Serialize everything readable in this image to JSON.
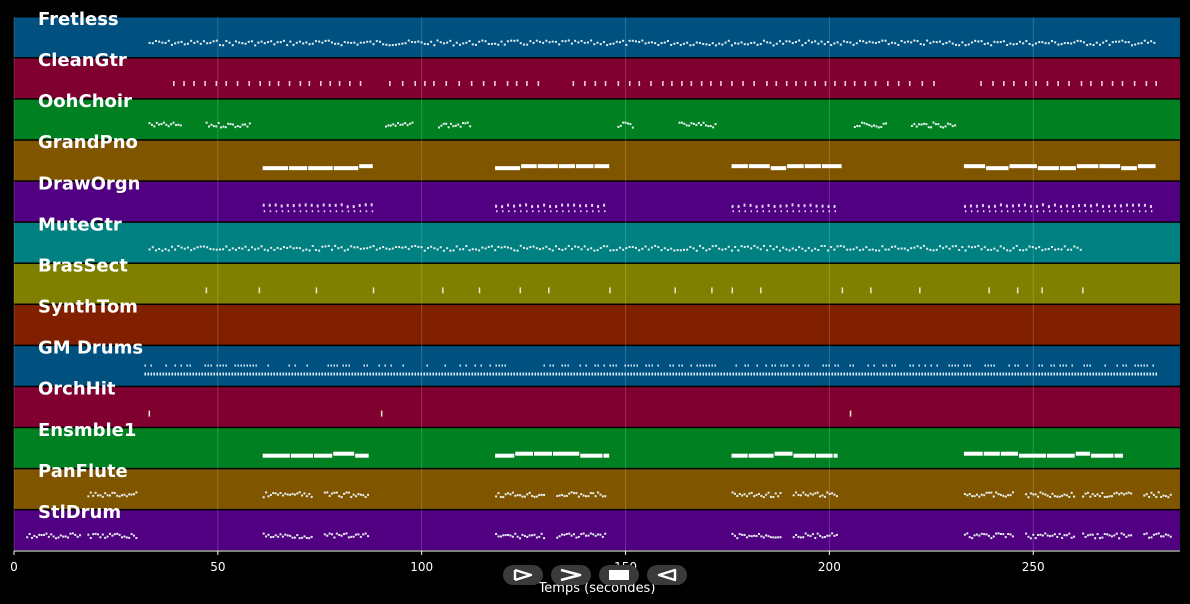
{
  "tracks": [
    {
      "name": "Fretless",
      "color": "#005080"
    },
    {
      "name": "CleanGtr",
      "color": "#800030"
    },
    {
      "name": "OohChoir",
      "color": "#008020"
    },
    {
      "name": "GrandPno",
      "color": "#805500"
    },
    {
      "name": "DrawOrgn",
      "color": "#500080"
    },
    {
      "name": "MuteGtr",
      "color": "#008080"
    },
    {
      "name": "BrasSect",
      "color": "#808000"
    },
    {
      "name": "SynthTom",
      "color": "#802000"
    },
    {
      "name": "GM Drums",
      "color": "#005080"
    },
    {
      "name": "OrchHit",
      "color": "#800030"
    },
    {
      "name": "Ensmble1",
      "color": "#008020"
    },
    {
      "name": "PanFlute",
      "color": "#805500"
    },
    {
      "name": "StlDrum",
      "color": "#500080"
    }
  ],
  "x_axis": {
    "label": "Temps (secondes)",
    "range": [
      0,
      286
    ],
    "ticks": [
      0,
      50,
      100,
      150,
      200,
      250
    ]
  },
  "controls": [
    {
      "name": "play-button",
      "icon": "play-outline-icon"
    },
    {
      "name": "forward-button",
      "icon": "chevron-right-icon"
    },
    {
      "name": "stop-button",
      "icon": "stop-icon"
    },
    {
      "name": "rewind-button",
      "icon": "play-reverse-outline-icon"
    }
  ],
  "note_groups": [
    {
      "track": 0,
      "style": "dense",
      "ranges": [
        [
          33,
          280
        ]
      ]
    },
    {
      "track": 1,
      "style": "sparse",
      "ranges": [
        [
          39,
          86
        ],
        [
          92,
          130
        ],
        [
          137,
          228
        ],
        [
          237,
          280
        ]
      ]
    },
    {
      "track": 2,
      "style": "clustered",
      "ranges": [
        [
          33,
          41
        ],
        [
          47,
          58
        ],
        [
          91,
          98
        ],
        [
          104,
          112
        ],
        [
          148,
          152
        ],
        [
          163,
          172
        ],
        [
          206,
          214
        ],
        [
          220,
          231
        ]
      ]
    },
    {
      "track": 3,
      "style": "bars",
      "ranges": [
        [
          61,
          88
        ],
        [
          118,
          146
        ],
        [
          176,
          203
        ],
        [
          233,
          280
        ]
      ]
    },
    {
      "track": 4,
      "style": "chords",
      "ranges": [
        [
          61,
          88
        ],
        [
          118,
          145
        ],
        [
          176,
          202
        ],
        [
          233,
          280
        ]
      ]
    },
    {
      "track": 5,
      "style": "dense",
      "ranges": [
        [
          33,
          262
        ]
      ]
    },
    {
      "track": 6,
      "style": "hits",
      "points": [
        47,
        60,
        74,
        88,
        105,
        114,
        124,
        131,
        146,
        162,
        171,
        176,
        183,
        203,
        210,
        222,
        239,
        246,
        252,
        262
      ]
    },
    {
      "track": 8,
      "style": "drums",
      "ranges": [
        [
          32,
          280
        ]
      ]
    },
    {
      "track": 9,
      "style": "hits",
      "points": [
        33,
        90,
        205
      ]
    },
    {
      "track": 10,
      "style": "bars",
      "ranges": [
        [
          61,
          87
        ],
        [
          118,
          146
        ],
        [
          176,
          202
        ],
        [
          233,
          272
        ]
      ]
    },
    {
      "track": 11,
      "style": "clustered",
      "ranges": [
        [
          18,
          30
        ],
        [
          61,
          73
        ],
        [
          76,
          87
        ],
        [
          118,
          130
        ],
        [
          133,
          145
        ],
        [
          176,
          188
        ],
        [
          191,
          202
        ],
        [
          233,
          245
        ],
        [
          248,
          260
        ],
        [
          262,
          274
        ],
        [
          277,
          284
        ]
      ]
    },
    {
      "track": 12,
      "style": "clustered",
      "ranges": [
        [
          3,
          16
        ],
        [
          18,
          30
        ],
        [
          61,
          73
        ],
        [
          76,
          87
        ],
        [
          118,
          130
        ],
        [
          133,
          145
        ],
        [
          176,
          188
        ],
        [
          191,
          202
        ],
        [
          233,
          245
        ],
        [
          248,
          260
        ],
        [
          262,
          274
        ],
        [
          277,
          284
        ]
      ]
    }
  ]
}
